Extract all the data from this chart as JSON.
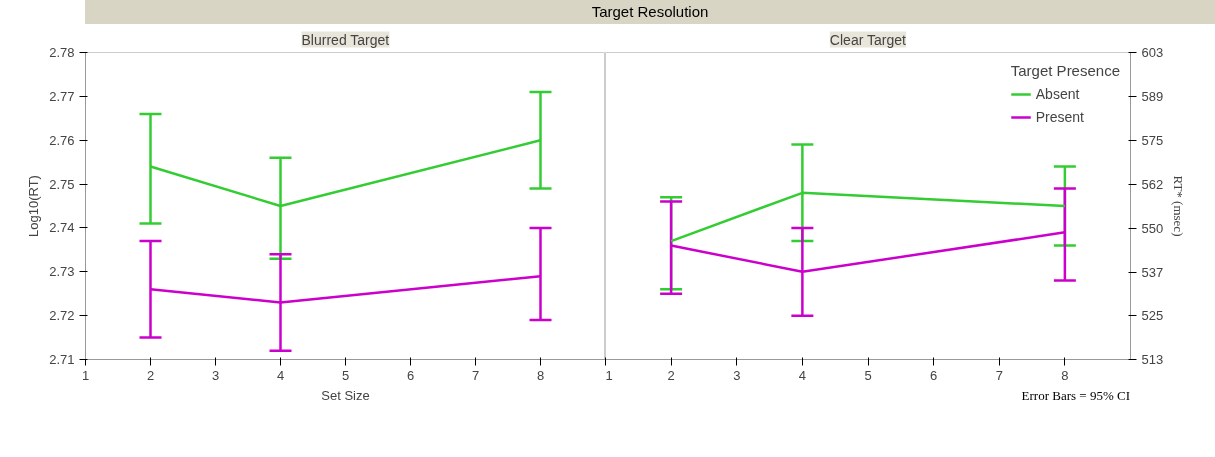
{
  "chart_data": [
    {
      "type": "line",
      "title": "Blurred Target",
      "annotations": [
        "Target Resolution"
      ],
      "xlabel": "Set Size",
      "ylabel": "Log10(RT)",
      "xlim": [
        1,
        9
      ],
      "xticks": [
        1,
        2,
        3,
        4,
        5,
        6,
        7,
        8
      ],
      "ylim": [
        2.71,
        2.78
      ],
      "yticks": [
        2.71,
        2.72,
        2.73,
        2.74,
        2.75,
        2.76,
        2.77,
        2.78
      ],
      "grid": false,
      "legend": false,
      "marker": "none",
      "line_style": "solid",
      "x": [
        2,
        4,
        8
      ],
      "series": [
        {
          "color": "#33cc33",
          "values": [
            2.754,
            2.745,
            2.76
          ],
          "errors": [
            [
              2.741,
              2.766
            ],
            [
              2.733,
              2.756
            ],
            [
              2.749,
              2.771
            ]
          ]
        },
        {
          "color": "#cc00cc",
          "values": [
            2.726,
            2.723,
            2.729
          ],
          "errors": [
            [
              2.715,
              2.737
            ],
            [
              2.712,
              2.734
            ],
            [
              2.719,
              2.74
            ]
          ]
        }
      ]
    },
    {
      "type": "line",
      "title": "Clear Target",
      "annotations": [
        "Error Bars = 95% CI"
      ],
      "y2label": "RT* (msec)",
      "legend_title": "Target Presence",
      "xlim": [
        1,
        9
      ],
      "xticks": [
        1,
        2,
        3,
        4,
        5,
        6,
        7,
        8
      ],
      "ylim": [
        2.71,
        2.78
      ],
      "tick_labels": "x",
      "log": "y2",
      "y2lim": [
        512.9,
        602.6
      ],
      "y2ticks": [
        {
          "value": 512.9,
          "label": "513"
        },
        {
          "value": 524.8,
          "label": "525"
        },
        {
          "value": 537.0,
          "label": "537"
        },
        {
          "value": 549.5,
          "label": "550"
        },
        {
          "value": 562.3,
          "label": "562"
        },
        {
          "value": 575.4,
          "label": "575"
        },
        {
          "value": 588.8,
          "label": "589"
        },
        {
          "value": 602.6,
          "label": "603"
        }
      ],
      "grid": false,
      "legend": "top right",
      "marker": "none",
      "line_style": "solid",
      "x": [
        2,
        4,
        8
      ],
      "series": [
        {
          "name": "Absent",
          "color": "#33cc33",
          "values": [
            2.737,
            2.748,
            2.745
          ],
          "errors": [
            [
              2.726,
              2.747
            ],
            [
              2.737,
              2.759
            ],
            [
              2.736,
              2.754
            ]
          ]
        },
        {
          "name": "Present",
          "color": "#cc00cc",
          "values": [
            2.736,
            2.73,
            2.739
          ],
          "errors": [
            [
              2.725,
              2.746
            ],
            [
              2.72,
              2.74
            ],
            [
              2.728,
              2.749
            ]
          ]
        }
      ]
    }
  ]
}
